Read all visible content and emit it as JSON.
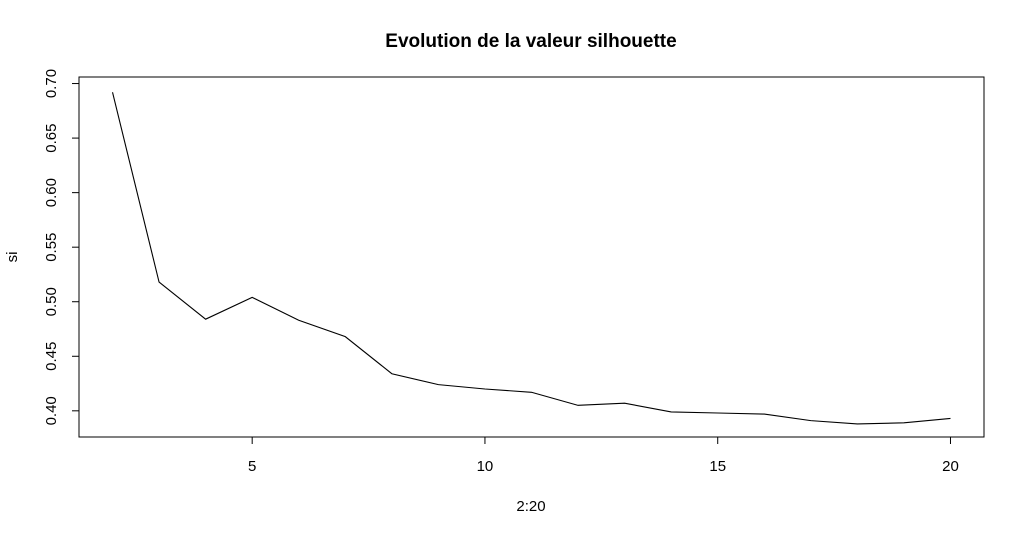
{
  "chart_data": {
    "type": "line",
    "title": "Evolution de la valeur silhouette",
    "xlabel": "2:20",
    "ylabel": "si",
    "x": [
      2,
      3,
      4,
      5,
      6,
      7,
      8,
      9,
      10,
      11,
      12,
      13,
      14,
      15,
      16,
      17,
      18,
      19,
      20
    ],
    "series": [
      {
        "values": [
          0.692,
          0.518,
          0.484,
          0.504,
          0.483,
          0.468,
          0.434,
          0.424,
          0.42,
          0.417,
          0.405,
          0.407,
          0.399,
          0.398,
          0.397,
          0.391,
          0.388,
          0.389,
          0.393
        ],
        "color": "#000000"
      }
    ],
    "xlim": [
      1.28,
      20.72
    ],
    "ylim": [
      0.376,
      0.706
    ],
    "x_ticks": [
      5,
      10,
      15,
      20
    ],
    "x_tick_labels": [
      "5",
      "10",
      "15",
      "20"
    ],
    "y_ticks": [
      0.4,
      0.45,
      0.5,
      0.55,
      0.6,
      0.65,
      0.7
    ],
    "y_tick_labels": [
      "0.40",
      "0.45",
      "0.50",
      "0.55",
      "0.60",
      "0.65",
      "0.70"
    ],
    "grid": false,
    "legend": false
  }
}
